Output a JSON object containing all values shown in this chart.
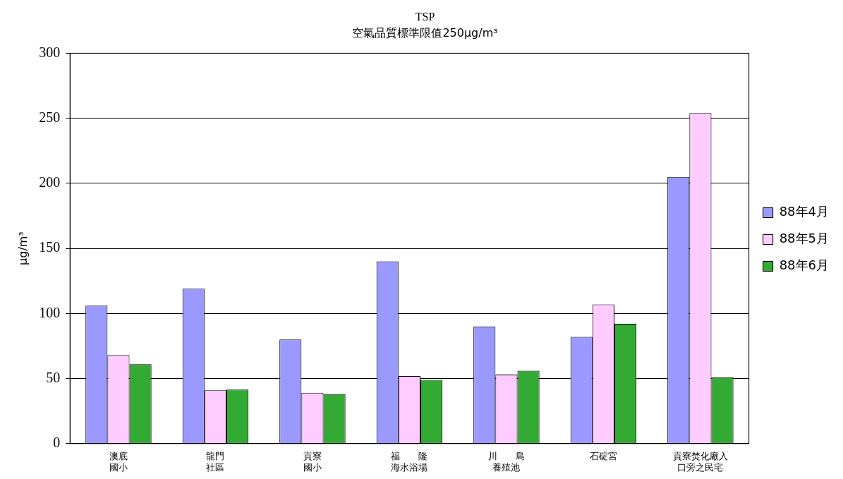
{
  "chart_data": {
    "type": "bar",
    "title": "TSP",
    "subtitle": "空氣品質標準限值250μg/m³",
    "ylabel": "μg/m³",
    "categories": [
      "澳底國小",
      "龍門社區",
      "貢寮國小",
      "福　　隆海水浴場",
      "川　　島養殖池",
      "石碇宮",
      "貢寮焚化廠入口旁之民宅"
    ],
    "series": [
      {
        "name": "88年4月",
        "color": "#9999ff",
        "values": [
          106,
          119,
          80,
          140,
          90,
          82,
          205
        ]
      },
      {
        "name": "88年5月",
        "color": "#ffccff",
        "values": [
          68,
          41,
          39,
          52,
          53,
          107,
          254
        ]
      },
      {
        "name": "88年6月",
        "color": "#33aa33",
        "values": [
          61,
          41.5,
          38,
          49,
          56,
          92,
          51
        ]
      }
    ],
    "ylim": [
      0,
      300
    ],
    "yticks": [
      0,
      50,
      100,
      150,
      200,
      250,
      300
    ],
    "grid": "y",
    "legend": "right"
  }
}
